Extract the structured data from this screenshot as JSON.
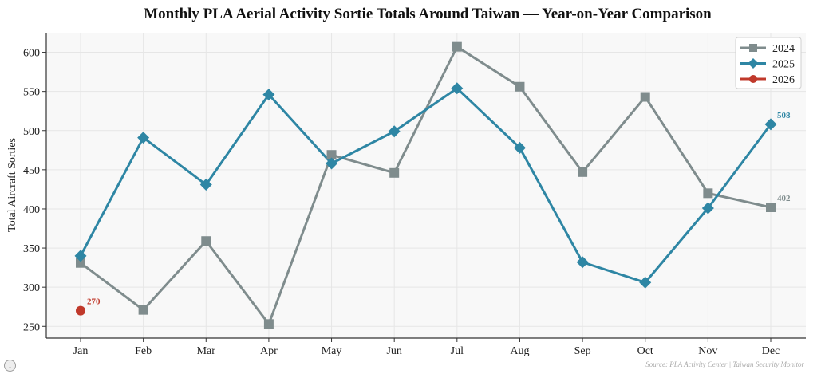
{
  "chart_data": {
    "type": "line",
    "title": "Monthly PLA Aerial Activity Sortie Totals Around Taiwan — Year-on-Year Comparison",
    "xlabel": "",
    "ylabel": "Total Aircraft Sorties",
    "categories": [
      "Jan",
      "Feb",
      "Mar",
      "Apr",
      "May",
      "Jun",
      "Jul",
      "Aug",
      "Sep",
      "Oct",
      "Nov",
      "Dec"
    ],
    "ylim": [
      235,
      625
    ],
    "yticks": [
      250,
      300,
      350,
      400,
      450,
      500,
      550,
      600
    ],
    "grid": true,
    "legend_position": "top-right",
    "series": [
      {
        "name": "2024",
        "color": "#7f8c8d",
        "marker": "square",
        "values": [
          331,
          271,
          359,
          253,
          469,
          446,
          607,
          556,
          447,
          543,
          420,
          402
        ],
        "end_label": "402"
      },
      {
        "name": "2025",
        "color": "#2e86a4",
        "marker": "diamond",
        "values": [
          340,
          491,
          431,
          546,
          458,
          499,
          554,
          478,
          332,
          306,
          401,
          508
        ],
        "end_label": "508"
      },
      {
        "name": "2026",
        "color": "#c0392b",
        "marker": "circle",
        "values": [
          270,
          null,
          null,
          null,
          null,
          null,
          null,
          null,
          null,
          null,
          null,
          null
        ],
        "end_label": "270"
      }
    ],
    "source": "Source: PLA Activity Center | Taiwan Security Monitor"
  },
  "ui": {
    "info_button_label": "i"
  }
}
